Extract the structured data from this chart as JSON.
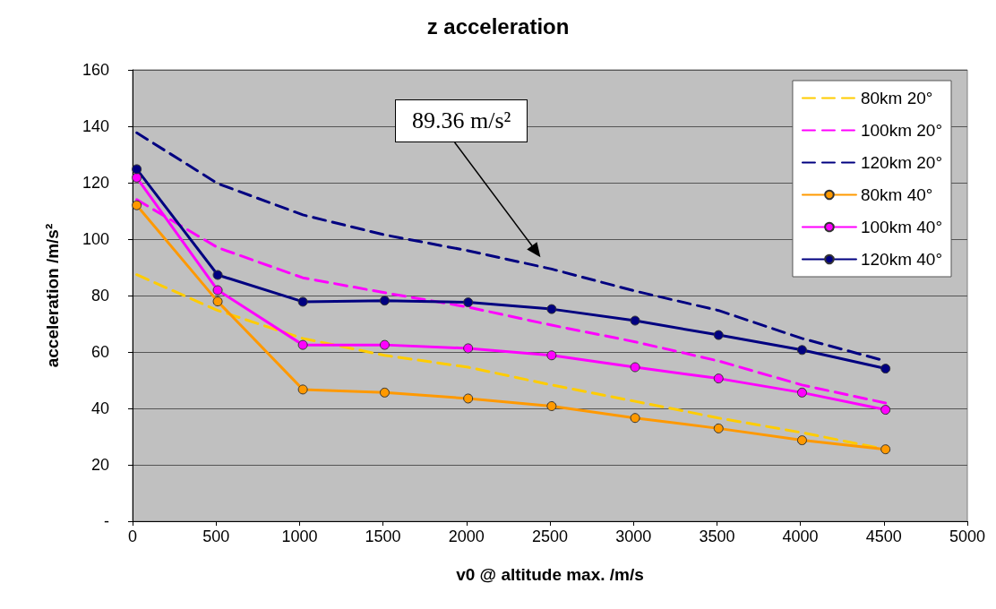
{
  "chart_data": {
    "type": "line",
    "title": "z acceleration",
    "xlabel": "v0 @ altitude max. /m/s",
    "ylabel": "acceleration /m/s²",
    "x": [
      25,
      510,
      1020,
      1510,
      2010,
      2510,
      3010,
      3510,
      4010,
      4510
    ],
    "series": [
      {
        "name": "80km 20°",
        "color": "#ffcc00",
        "line_style": "dashed",
        "marker": "none",
        "values": [
          87.4,
          74.7,
          64.8,
          58.8,
          54.6,
          48.3,
          42.5,
          36.6,
          31.4,
          25.5
        ]
      },
      {
        "name": "100km 20°",
        "color": "#ff00ff",
        "line_style": "dashed",
        "marker": "none",
        "values": [
          114,
          97,
          86.3,
          81,
          75.9,
          69.5,
          63.6,
          56.8,
          48.3,
          41.9
        ]
      },
      {
        "name": "120km 20°",
        "color": "#000080",
        "line_style": "dashed",
        "marker": "none",
        "values": [
          137.7,
          119.7,
          108.6,
          101.5,
          95.9,
          89.4,
          81.6,
          74.7,
          64.8,
          56.8
        ]
      },
      {
        "name": "80km 40°",
        "color": "#ff9900",
        "line_style": "solid",
        "marker": "circle",
        "values": [
          112,
          77.9,
          46.7,
          45.6,
          43.5,
          40.8,
          36.6,
          32.9,
          28.7,
          25.5
        ]
      },
      {
        "name": "100km 40°",
        "color": "#ff00ff",
        "line_style": "solid",
        "marker": "circle",
        "values": [
          121.8,
          81.9,
          62.5,
          62.5,
          61.3,
          58.8,
          54.6,
          50.6,
          45.6,
          39.5
        ]
      },
      {
        "name": "120km 40°",
        "color": "#000080",
        "line_style": "solid",
        "marker": "circle",
        "values": [
          124.8,
          87.3,
          77.8,
          78.2,
          77.6,
          75.2,
          71.1,
          66,
          60.7,
          54.1
        ]
      }
    ],
    "xlim": [
      0,
      5000
    ],
    "xticks": [
      0,
      500,
      1000,
      1500,
      2000,
      2500,
      3000,
      3500,
      4000,
      4500,
      5000
    ],
    "ylim": [
      0,
      160
    ],
    "yticks": [
      {
        "value": 0,
        "label": "-"
      },
      20,
      40,
      60,
      80,
      100,
      120,
      140,
      160
    ],
    "grid": "y",
    "legend": "top right",
    "annotations": [
      "89.36 m/s²"
    ]
  }
}
